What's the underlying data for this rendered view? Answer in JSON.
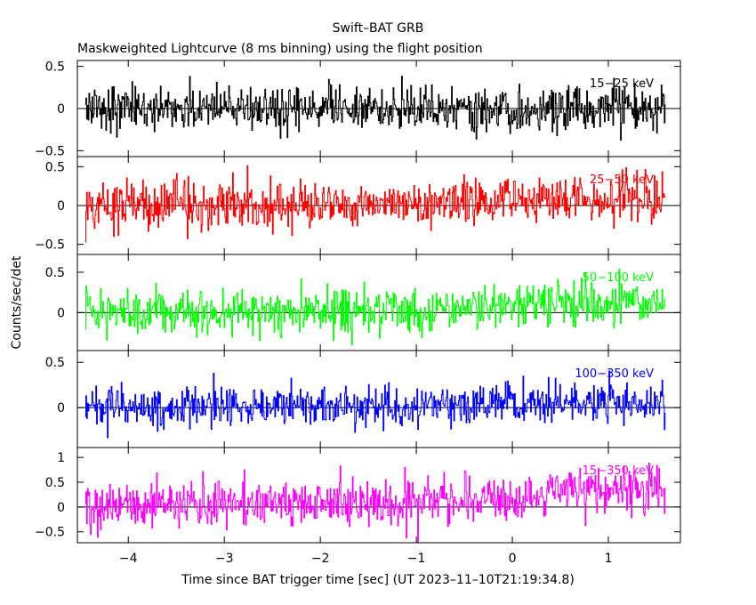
{
  "chart_data": {
    "type": "line",
    "title": "Swift–BAT GRB",
    "subtitle": "Maskweighted Lightcurve (8 ms binning) using the flight position",
    "xlabel": "Time since BAT trigger time [sec] (UT 2023–11–10T21:19:34.8)",
    "ylabel": "Counts/sec/det",
    "xlim": [
      -4.53,
      1.75
    ],
    "x_ticks": [
      -4,
      -3,
      -2,
      -1,
      0,
      1
    ],
    "x_tick_labels": [
      "−4",
      "−3",
      "−2",
      "−1",
      "0",
      "1"
    ],
    "data_x_range": [
      -4.45,
      1.6
    ],
    "bin_width_s": 0.008,
    "panels": [
      {
        "band": "15−25 keV",
        "color": "#000000",
        "ylim": [
          -0.57,
          0.57
        ],
        "y_ticks": [
          -0.5,
          0,
          0.5
        ],
        "y_tick_labels": [
          "−0.5",
          "0",
          "0.5"
        ],
        "noise_sigma": 0.13,
        "trend": [
          [
            -4.45,
            0.0
          ],
          [
            1.6,
            0.0
          ]
        ]
      },
      {
        "band": "25−50 keV",
        "color": "#ff0000",
        "ylim": [
          -0.63,
          0.63
        ],
        "y_ticks": [
          -0.5,
          0,
          0.5
        ],
        "y_tick_labels": [
          "−0.5",
          "0",
          "0.5"
        ],
        "noise_sigma": 0.15,
        "trend": [
          [
            -4.45,
            0.0
          ],
          [
            -1.0,
            0.02
          ],
          [
            0.2,
            0.06
          ],
          [
            1.6,
            0.12
          ]
        ]
      },
      {
        "band": "50−100 keV",
        "color": "#00ff00",
        "ylim": [
          -0.47,
          0.72
        ],
        "y_ticks": [
          0,
          0.5
        ],
        "y_tick_labels": [
          "0",
          "0.5"
        ],
        "noise_sigma": 0.14,
        "trend": [
          [
            -4.45,
            0.0
          ],
          [
            -1.0,
            0.03
          ],
          [
            0.2,
            0.08
          ],
          [
            1.6,
            0.14
          ]
        ]
      },
      {
        "band": "100−350 keV",
        "color": "#0000ff",
        "ylim": [
          -0.44,
          0.63
        ],
        "y_ticks": [
          0,
          0.5
        ],
        "y_tick_labels": [
          "0",
          "0.5"
        ],
        "noise_sigma": 0.11,
        "trend": [
          [
            -4.45,
            0.0
          ],
          [
            -1.0,
            0.01
          ],
          [
            0.2,
            0.05
          ],
          [
            1.6,
            0.09
          ]
        ]
      },
      {
        "band": "15−350 keV",
        "color": "#ff00ff",
        "ylim": [
          -0.72,
          1.2
        ],
        "y_ticks": [
          -0.5,
          0,
          0.5,
          1
        ],
        "y_tick_labels": [
          "−0.5",
          "0",
          "0.5",
          "1"
        ],
        "noise_sigma": 0.24,
        "trend": [
          [
            -4.45,
            0.0
          ],
          [
            -1.0,
            0.1
          ],
          [
            0.2,
            0.2
          ],
          [
            0.5,
            0.38
          ],
          [
            1.6,
            0.38
          ]
        ]
      }
    ]
  }
}
